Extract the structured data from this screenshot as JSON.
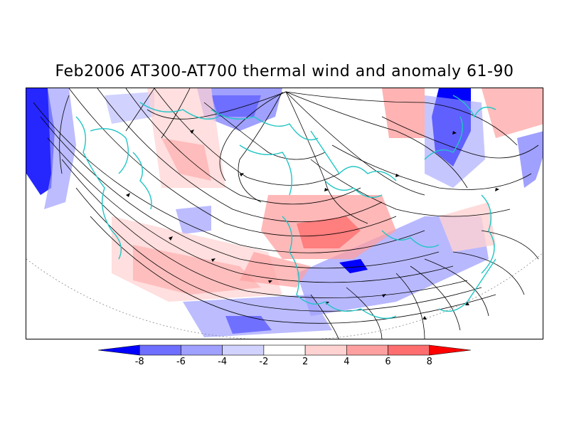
{
  "title": "Feb2006 AT300-AT700 thermal wind and anomaly 61-90",
  "colorbar": {
    "levels": [
      -8,
      -6,
      -4,
      -2,
      2,
      4,
      6,
      8
    ],
    "labels": [
      "-8",
      "-6",
      "-4",
      "-2",
      "2",
      "4",
      "6",
      "8"
    ],
    "colors": [
      "#0000ff",
      "#6e6eff",
      "#a0a0ff",
      "#d2d2ff",
      "#ffffff",
      "#ffd2d2",
      "#ffa0a0",
      "#ff6e6e",
      "#ff0000"
    ]
  }
}
